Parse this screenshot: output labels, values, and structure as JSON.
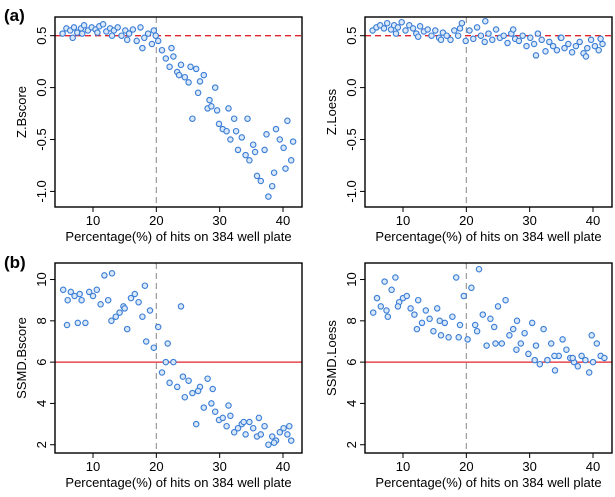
{
  "panel_labels": [
    "(a)",
    "(b)"
  ],
  "chart_data": [
    {
      "type": "scatter",
      "panel": "(a)",
      "xlabel": "Percentage(%) of hits on 384 well plate",
      "ylabel": "Z.Bscore",
      "xlim": [
        4,
        43
      ],
      "ylim": [
        -1.15,
        0.68
      ],
      "xticks": [
        10,
        20,
        30,
        40
      ],
      "yticks": [
        -1.0,
        -0.5,
        0.0,
        0.5
      ],
      "ytick_labels": [
        "-1.0",
        "-0.5",
        "0.0",
        "0.5"
      ],
      "hline": {
        "y": 0.5,
        "color": "#e0242b",
        "style": "dashed"
      },
      "vline": {
        "x": 20,
        "color": "#999999",
        "style": "dashed"
      },
      "point_color": "#3a7dd6",
      "x": [
        5.2,
        5.8,
        6.4,
        7.0,
        7.5,
        8.1,
        8.6,
        9.2,
        9.8,
        10.4,
        11.0,
        11.6,
        12.1,
        12.7,
        13.3,
        13.9,
        14.5,
        15.1,
        15.7,
        16.3,
        16.9,
        17.5,
        18.1,
        18.7,
        19.3,
        19.9,
        6.8,
        8.3,
        10.7,
        13.0,
        15.4,
        17.8,
        19.6,
        20.3,
        20.9,
        21.5,
        22.1,
        22.7,
        23.3,
        23.9,
        24.5,
        25.1,
        25.7,
        26.3,
        26.9,
        27.5,
        28.1,
        28.7,
        29.3,
        29.9,
        30.5,
        31.1,
        31.7,
        32.3,
        32.9,
        33.5,
        34.1,
        34.7,
        35.3,
        35.9,
        36.5,
        37.1,
        37.7,
        38.3,
        38.9,
        39.5,
        40.1,
        40.7,
        41.3,
        22.4,
        25.4,
        28.4,
        31.4,
        34.4,
        37.4,
        40.4,
        23.6,
        26.6,
        29.6,
        32.6,
        35.6,
        38.6,
        41.6
      ],
      "y": [
        0.52,
        0.57,
        0.55,
        0.58,
        0.53,
        0.57,
        0.6,
        0.55,
        0.58,
        0.56,
        0.59,
        0.61,
        0.54,
        0.57,
        0.55,
        0.58,
        0.5,
        0.55,
        0.52,
        0.56,
        0.45,
        0.58,
        0.48,
        0.52,
        0.42,
        0.5,
        0.48,
        0.52,
        0.53,
        0.5,
        0.46,
        0.38,
        0.55,
        0.45,
        0.36,
        0.28,
        0.2,
        0.3,
        0.15,
        0.22,
        0.1,
        0.05,
        -0.3,
        0.18,
        0.06,
        0.12,
        -0.2,
        -0.18,
        0.0,
        -0.35,
        -0.4,
        -0.42,
        -0.5,
        -0.3,
        -0.6,
        -0.48,
        -0.65,
        -0.7,
        -0.55,
        -0.85,
        -0.9,
        -0.6,
        -1.05,
        -0.95,
        -0.4,
        -0.5,
        -0.58,
        -0.32,
        -0.7,
        0.38,
        0.2,
        -0.12,
        -0.2,
        -0.3,
        -0.45,
        -0.78,
        0.12,
        -0.05,
        -0.22,
        -0.42,
        -0.62,
        -0.82,
        -0.52
      ]
    },
    {
      "type": "scatter",
      "panel": "(a)",
      "xlabel": "Percentage(%) of hits on 384 well plate",
      "ylabel": "Z.Loess",
      "xlim": [
        4,
        43
      ],
      "ylim": [
        -1.15,
        0.68
      ],
      "xticks": [
        10,
        20,
        30,
        40
      ],
      "yticks": [
        -1.0,
        -0.5,
        0.0,
        0.5
      ],
      "ytick_labels": [
        "-1.0",
        "-0.5",
        "0.0",
        "0.5"
      ],
      "hline": {
        "y": 0.5,
        "color": "#e0242b",
        "style": "dashed"
      },
      "vline": {
        "x": 20,
        "color": "#999999",
        "style": "dashed"
      },
      "point_color": "#3a7dd6",
      "x": [
        5.2,
        5.8,
        6.4,
        7.0,
        7.5,
        8.1,
        8.6,
        9.2,
        9.8,
        10.4,
        11.0,
        11.6,
        12.1,
        12.7,
        13.3,
        13.9,
        14.5,
        15.1,
        15.7,
        16.3,
        16.9,
        17.5,
        18.1,
        18.7,
        19.3,
        19.9,
        20.5,
        21.1,
        21.7,
        22.3,
        22.9,
        23.5,
        24.1,
        24.7,
        25.3,
        25.9,
        26.5,
        27.1,
        27.7,
        28.3,
        28.9,
        29.5,
        30.1,
        30.7,
        31.3,
        31.9,
        32.5,
        33.1,
        33.7,
        34.3,
        34.9,
        35.5,
        36.1,
        36.7,
        37.3,
        37.9,
        38.5,
        39.1,
        39.7,
        40.3,
        40.9,
        41.5,
        8.9,
        12.4,
        16.0,
        19.0,
        23.0,
        27.4,
        31.0,
        35.0,
        38.9,
        41.2
      ],
      "y": [
        0.55,
        0.58,
        0.6,
        0.57,
        0.62,
        0.56,
        0.6,
        0.58,
        0.63,
        0.55,
        0.6,
        0.57,
        0.52,
        0.59,
        0.54,
        0.56,
        0.5,
        0.55,
        0.48,
        0.53,
        0.5,
        0.46,
        0.55,
        0.5,
        0.62,
        0.45,
        0.55,
        0.47,
        0.58,
        0.5,
        0.44,
        0.52,
        0.46,
        0.56,
        0.48,
        0.5,
        0.43,
        0.52,
        0.47,
        0.45,
        0.5,
        0.4,
        0.48,
        0.42,
        0.52,
        0.46,
        0.35,
        0.44,
        0.4,
        0.36,
        0.48,
        0.38,
        0.42,
        0.34,
        0.4,
        0.44,
        0.33,
        0.38,
        0.46,
        0.4,
        0.36,
        0.42,
        0.52,
        0.49,
        0.46,
        0.57,
        0.64,
        0.56,
        0.31,
        0.48,
        0.3,
        0.47
      ]
    },
    {
      "type": "scatter",
      "panel": "(b)",
      "xlabel": "Percentage(%) of hits on 384 well plate",
      "ylabel": "SSMD.Bscore",
      "xlim": [
        4,
        43
      ],
      "ylim": [
        1.6,
        10.8
      ],
      "xticks": [
        10,
        20,
        30,
        40
      ],
      "yticks": [
        2,
        4,
        6,
        8,
        10
      ],
      "ytick_labels": [
        "2",
        "4",
        "6",
        "8",
        "10"
      ],
      "hline": {
        "y": 6,
        "color": "#e0242b",
        "style": "solid"
      },
      "vline": {
        "x": 20,
        "color": "#999999",
        "style": "dashed"
      },
      "point_color": "#3a7dd6",
      "x": [
        5.3,
        5.9,
        6.5,
        7.1,
        7.6,
        8.2,
        8.8,
        9.4,
        10.0,
        10.6,
        11.2,
        11.8,
        12.4,
        13.0,
        13.6,
        14.2,
        14.8,
        15.4,
        16.0,
        16.6,
        17.2,
        17.8,
        18.4,
        19.0,
        19.6,
        6.0,
        7.9,
        12.9,
        15.0,
        18.2,
        20.3,
        20.9,
        21.5,
        22.1,
        22.7,
        23.3,
        23.9,
        24.5,
        25.1,
        25.7,
        26.3,
        26.9,
        27.5,
        28.1,
        28.7,
        29.3,
        29.9,
        30.5,
        31.1,
        31.7,
        32.3,
        32.9,
        33.5,
        34.1,
        34.7,
        35.3,
        35.9,
        36.5,
        37.1,
        37.7,
        38.3,
        38.9,
        39.5,
        40.1,
        40.7,
        41.3,
        21.8,
        24.2,
        26.6,
        28.9,
        31.4,
        33.8,
        36.2,
        38.6,
        41.0
      ],
      "y": [
        9.5,
        7.8,
        9.4,
        9.2,
        7.9,
        9.0,
        7.9,
        9.4,
        9.2,
        9.5,
        8.8,
        10.2,
        9.0,
        10.3,
        8.2,
        8.4,
        8.7,
        7.6,
        9.1,
        9.3,
        8.9,
        8.2,
        7.0,
        8.5,
        6.7,
        9.0,
        9.3,
        8.0,
        8.6,
        9.7,
        7.7,
        5.5,
        6.0,
        5.0,
        6.0,
        4.8,
        8.7,
        4.3,
        5.1,
        4.5,
        3.0,
        4.8,
        3.8,
        5.2,
        4.0,
        3.6,
        3.2,
        3.3,
        2.9,
        3.4,
        2.6,
        2.8,
        3.0,
        2.5,
        3.1,
        2.8,
        2.4,
        2.5,
        2.9,
        2.0,
        2.4,
        2.2,
        2.6,
        2.8,
        2.5,
        2.2,
        6.9,
        5.3,
        4.6,
        4.7,
        3.9,
        3.1,
        3.3,
        2.1,
        2.9
      ]
    },
    {
      "type": "scatter",
      "panel": "(b)",
      "xlabel": "Percentage(%) of hits on 384 well plate",
      "ylabel": "SSMD.Loess",
      "xlim": [
        4,
        43
      ],
      "ylim": [
        1.6,
        10.8
      ],
      "xticks": [
        10,
        20,
        30,
        40
      ],
      "yticks": [
        2,
        4,
        6,
        8,
        10
      ],
      "ytick_labels": [
        "2",
        "4",
        "6",
        "8",
        "10"
      ],
      "hline": {
        "y": 6,
        "color": "#e0242b",
        "style": "solid"
      },
      "vline": {
        "x": 20,
        "color": "#999999",
        "style": "dashed"
      },
      "point_color": "#3a7dd6",
      "x": [
        5.3,
        5.9,
        6.5,
        7.1,
        7.6,
        8.2,
        8.8,
        9.4,
        10.0,
        10.6,
        11.2,
        11.8,
        12.4,
        13.0,
        13.6,
        14.2,
        14.8,
        15.4,
        16.0,
        16.6,
        17.2,
        17.8,
        18.4,
        19.0,
        19.6,
        20.2,
        20.8,
        21.4,
        22.0,
        22.6,
        23.2,
        23.8,
        24.4,
        25.0,
        25.6,
        26.2,
        26.8,
        27.4,
        28.0,
        28.6,
        29.2,
        29.8,
        30.4,
        31.0,
        31.6,
        32.2,
        32.8,
        33.4,
        34.0,
        34.6,
        35.2,
        35.8,
        36.4,
        37.0,
        37.6,
        38.2,
        38.8,
        39.4,
        40.0,
        40.6,
        41.2,
        41.8,
        7.4,
        9.2,
        12.2,
        15.8,
        18.8,
        21.7,
        24.6,
        27.9,
        30.8,
        33.9,
        36.8,
        39.8
      ],
      "y": [
        8.4,
        9.1,
        8.7,
        9.9,
        8.2,
        9.5,
        10.1,
        8.9,
        9.1,
        9.2,
        8.6,
        8.3,
        9.0,
        7.9,
        8.5,
        8.1,
        7.5,
        8.6,
        7.3,
        7.9,
        7.2,
        8.2,
        10.1,
        7.8,
        9.2,
        7.1,
        9.6,
        7.8,
        10.5,
        8.3,
        6.8,
        8.1,
        7.7,
        8.7,
        6.9,
        9.0,
        7.3,
        7.6,
        8.0,
        6.9,
        7.4,
        6.4,
        7.9,
        6.8,
        5.9,
        7.6,
        6.1,
        6.9,
        5.6,
        6.3,
        7.1,
        6.6,
        6.2,
        6.0,
        5.8,
        6.3,
        6.1,
        5.5,
        6.0,
        6.9,
        6.3,
        6.2,
        8.5,
        8.7,
        7.6,
        8.0,
        7.2,
        7.5,
        6.9,
        6.6,
        6.1,
        6.3,
        6.2,
        7.3
      ]
    }
  ]
}
